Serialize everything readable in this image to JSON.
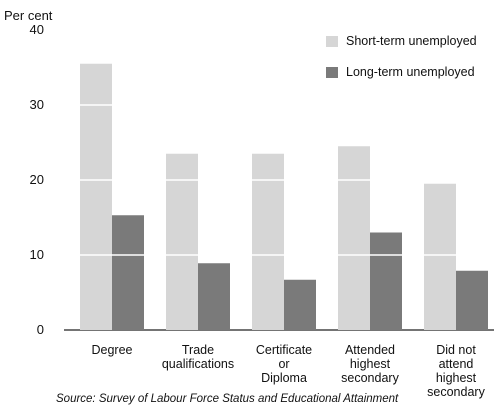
{
  "chart_data": {
    "type": "bar",
    "ylabel": "Per cent",
    "ylim": [
      0,
      40
    ],
    "yticks": [
      0,
      10,
      20,
      30,
      40
    ],
    "categories": [
      "Degree",
      "Trade\nqualifications",
      "Certificate\nor\nDiploma",
      "Attended\nhighest\nsecondary",
      "Did not\nattend\nhighest\nsecondary"
    ],
    "series": [
      {
        "name": "Short-term unemployed",
        "values": [
          35.5,
          23.5,
          23.5,
          24.5,
          19.5
        ]
      },
      {
        "name": "Long-term unemployed",
        "values": [
          15.3,
          8.9,
          6.7,
          13.0,
          7.9
        ]
      }
    ],
    "legend_position": "top-right",
    "grid": false,
    "colors": {
      "short_term": "#d6d6d6",
      "long_term": "#7a7a7a",
      "gap_line": "#ffffff"
    },
    "source": "Source: Survey of Labour Force Status and Educational Attainment"
  }
}
